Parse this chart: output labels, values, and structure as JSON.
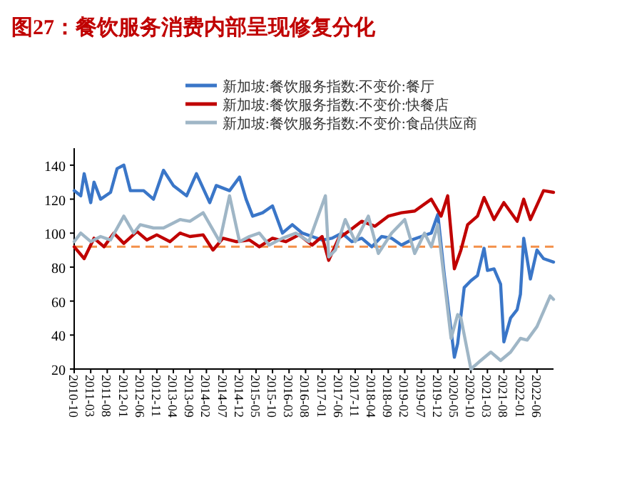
{
  "chart_data": {
    "type": "line",
    "title": "图27：餐饮服务消费内部呈现修复分化",
    "legend": "top",
    "grid": false,
    "marker": "none",
    "line_style": "solid",
    "xlim": [
      "2010-10",
      "2022-11"
    ],
    "ylim": [
      20,
      150
    ],
    "yticks": [
      20,
      40,
      60,
      80,
      100,
      120,
      140
    ],
    "xticks": [
      {
        "value": "2010-10",
        "label": "2010-10"
      },
      {
        "value": "2011-03",
        "label": "2011-03"
      },
      {
        "value": "2011-08",
        "label": "2011-08"
      },
      {
        "value": "2012-01",
        "label": "2012-01"
      },
      {
        "value": "2012-06",
        "label": "2012-06"
      },
      {
        "value": "2012-11",
        "label": "2012-11"
      },
      {
        "value": "2013-04",
        "label": "2013-04"
      },
      {
        "value": "2013-09",
        "label": "2013-09"
      },
      {
        "value": "2014-02",
        "label": "2014-02"
      },
      {
        "value": "2014-07",
        "label": "2014-07"
      },
      {
        "value": "2014-12",
        "label": "2014-12"
      },
      {
        "value": "2015-05",
        "label": "2015-05"
      },
      {
        "value": "2015-10",
        "label": "2015-10"
      },
      {
        "value": "2016-03",
        "label": "2016-03"
      },
      {
        "value": "2016-08",
        "label": "2016-08"
      },
      {
        "value": "2017-01",
        "label": "2017-01"
      },
      {
        "value": "2017-06",
        "label": "2017-06"
      },
      {
        "value": "2017-11",
        "label": "2017-11"
      },
      {
        "value": "2018-04",
        "label": "2018-04"
      },
      {
        "value": "2018-09",
        "label": "2018-09"
      },
      {
        "value": "2019-02",
        "label": "2019-02"
      },
      {
        "value": "2019-07",
        "label": "2019-07"
      },
      {
        "value": "2019-12",
        "label": "2019-12"
      },
      {
        "value": "2020-05",
        "label": "2020-05"
      },
      {
        "value": "2020-10",
        "label": "2020-10"
      },
      {
        "value": "2021-03",
        "label": "2021-03"
      },
      {
        "value": "2021-08",
        "label": "2021-08"
      },
      {
        "value": "2022-01",
        "label": "2022-01"
      },
      {
        "value": "2022-06",
        "label": "2022-06"
      }
    ],
    "ref_lines": [
      {
        "axis": "y",
        "value": 92,
        "label": null,
        "color": "#f4904a",
        "line_style": "dashed"
      }
    ],
    "series": [
      {
        "name": "新加坡:餐饮服务指数:不变价:餐厅",
        "color": "#3a76c8",
        "x": [
          "2010-10",
          "2010-12",
          "2011-01",
          "2011-03",
          "2011-04",
          "2011-06",
          "2011-09",
          "2011-11",
          "2012-01",
          "2012-03",
          "2012-07",
          "2012-10",
          "2013-01",
          "2013-04",
          "2013-08",
          "2013-11",
          "2014-03",
          "2014-05",
          "2014-09",
          "2014-12",
          "2015-02",
          "2015-04",
          "2015-07",
          "2015-10",
          "2016-01",
          "2016-04",
          "2016-07",
          "2016-10",
          "2017-01",
          "2017-04",
          "2017-07",
          "2017-10",
          "2018-01",
          "2018-04",
          "2018-07",
          "2018-10",
          "2019-01",
          "2019-04",
          "2019-07",
          "2019-10",
          "2019-12",
          "2020-02",
          "2020-05",
          "2020-06",
          "2020-08",
          "2020-10",
          "2020-12",
          "2021-02",
          "2021-03",
          "2021-05",
          "2021-07",
          "2021-08",
          "2021-10",
          "2021-12",
          "2022-01",
          "2022-02",
          "2022-04",
          "2022-06",
          "2022-08",
          "2022-11"
        ],
        "values": [
          125,
          122,
          135,
          118,
          130,
          120,
          124,
          138,
          140,
          125,
          125,
          120,
          137,
          128,
          122,
          135,
          118,
          128,
          125,
          133,
          120,
          110,
          112,
          116,
          100,
          105,
          100,
          98,
          96,
          97,
          100,
          95,
          97,
          92,
          98,
          97,
          93,
          96,
          98,
          100,
          111,
          75,
          27,
          35,
          68,
          72,
          75,
          91,
          78,
          79,
          70,
          36,
          50,
          55,
          64,
          97,
          73,
          90,
          85,
          83
        ]
      },
      {
        "name": "新加坡:餐饮服务指数:不变价:快餐店",
        "color": "#c00000",
        "x": [
          "2010-10",
          "2011-01",
          "2011-04",
          "2011-07",
          "2011-10",
          "2012-01",
          "2012-05",
          "2012-08",
          "2012-11",
          "2013-03",
          "2013-06",
          "2013-09",
          "2014-01",
          "2014-04",
          "2014-07",
          "2014-11",
          "2015-03",
          "2015-06",
          "2015-10",
          "2016-02",
          "2016-06",
          "2016-10",
          "2017-01",
          "2017-03",
          "2017-06",
          "2017-09",
          "2018-01",
          "2018-05",
          "2018-09",
          "2019-01",
          "2019-05",
          "2019-10",
          "2020-01",
          "2020-03",
          "2020-05",
          "2020-07",
          "2020-09",
          "2020-12",
          "2021-02",
          "2021-05",
          "2021-08",
          "2021-12",
          "2022-02",
          "2022-04",
          "2022-08",
          "2022-11"
        ],
        "values": [
          92,
          85,
          97,
          92,
          100,
          94,
          101,
          96,
          99,
          95,
          100,
          98,
          99,
          90,
          97,
          95,
          96,
          92,
          97,
          95,
          99,
          93,
          98,
          84,
          97,
          101,
          107,
          104,
          110,
          112,
          113,
          120,
          110,
          122,
          79,
          90,
          105,
          110,
          121,
          108,
          118,
          107,
          120,
          108,
          125,
          124
        ]
      },
      {
        "name": "新加坡:餐饮服务指数:不变价:食品供应商",
        "color": "#9fb6c6",
        "x": [
          "2010-10",
          "2010-12",
          "2011-03",
          "2011-06",
          "2011-09",
          "2012-01",
          "2012-04",
          "2012-06",
          "2012-10",
          "2013-01",
          "2013-06",
          "2013-09",
          "2014-01",
          "2014-06",
          "2014-09",
          "2014-12",
          "2015-03",
          "2015-06",
          "2015-09",
          "2016-01",
          "2016-05",
          "2016-09",
          "2017-02",
          "2017-03",
          "2017-05",
          "2017-08",
          "2017-11",
          "2018-03",
          "2018-06",
          "2018-10",
          "2019-02",
          "2019-05",
          "2019-08",
          "2019-10",
          "2019-12",
          "2020-04",
          "2020-06",
          "2020-07",
          "2020-10",
          "2021-01",
          "2021-04",
          "2021-07",
          "2021-10",
          "2022-01",
          "2022-03",
          "2022-06",
          "2022-10",
          "2022-11"
        ],
        "values": [
          95,
          100,
          95,
          98,
          96,
          110,
          100,
          105,
          103,
          103,
          108,
          107,
          112,
          95,
          122,
          95,
          98,
          100,
          93,
          97,
          100,
          95,
          122,
          86,
          90,
          108,
          95,
          110,
          88,
          100,
          108,
          88,
          100,
          92,
          105,
          38,
          52,
          50,
          20,
          25,
          30,
          25,
          30,
          38,
          37,
          45,
          63,
          61
        ]
      }
    ]
  }
}
